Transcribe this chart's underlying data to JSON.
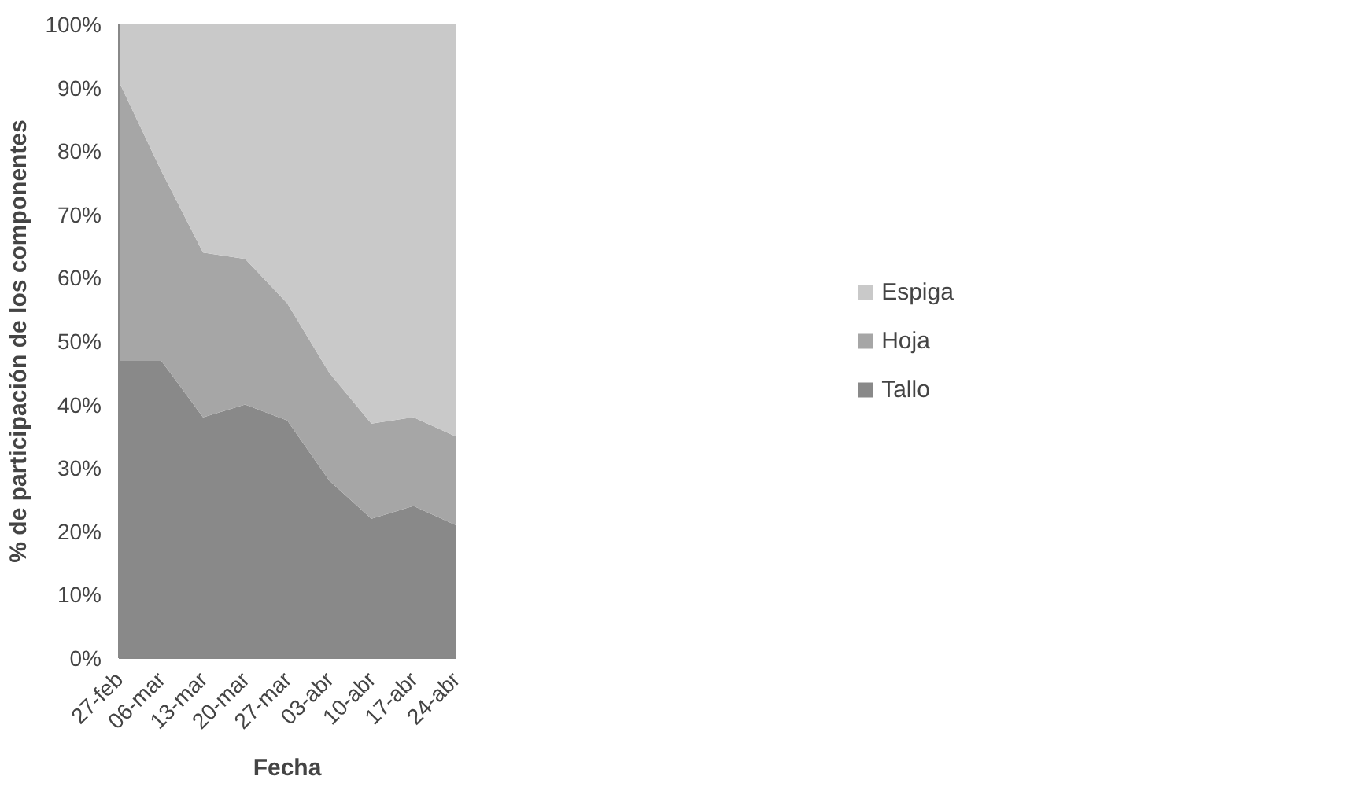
{
  "chart_data": {
    "type": "area",
    "stacked": true,
    "xlabel": "Fecha",
    "ylabel": "% de participación de los componentes",
    "categories": [
      "27-feb",
      "06-mar",
      "13-mar",
      "20-mar",
      "27-mar",
      "03-abr",
      "10-abr",
      "17-abr",
      "24-abr"
    ],
    "series": [
      {
        "name": "Tallo",
        "color": "#898989",
        "values": [
          47,
          47,
          38,
          40,
          37.5,
          28,
          22,
          24,
          21
        ]
      },
      {
        "name": "Hoja",
        "color": "#a6a6a6",
        "values": [
          44,
          30,
          26,
          23,
          18.5,
          17,
          15,
          14,
          14
        ]
      },
      {
        "name": "Espiga",
        "color": "#c9c9c9",
        "values": [
          9,
          23,
          36,
          37,
          44,
          55,
          63,
          62,
          65
        ]
      }
    ],
    "ylim": [
      0,
      100
    ],
    "yticks": [
      {
        "value": 0,
        "label": "0%"
      },
      {
        "value": 10,
        "label": "10%"
      },
      {
        "value": 20,
        "label": "20%"
      },
      {
        "value": 30,
        "label": "30%"
      },
      {
        "value": 40,
        "label": "40%"
      },
      {
        "value": 50,
        "label": "50%"
      },
      {
        "value": 60,
        "label": "60%"
      },
      {
        "value": 70,
        "label": "70%"
      },
      {
        "value": 80,
        "label": "80%"
      },
      {
        "value": 90,
        "label": "90%"
      },
      {
        "value": 100,
        "label": "100%"
      }
    ],
    "grid": false,
    "legend": "right"
  }
}
